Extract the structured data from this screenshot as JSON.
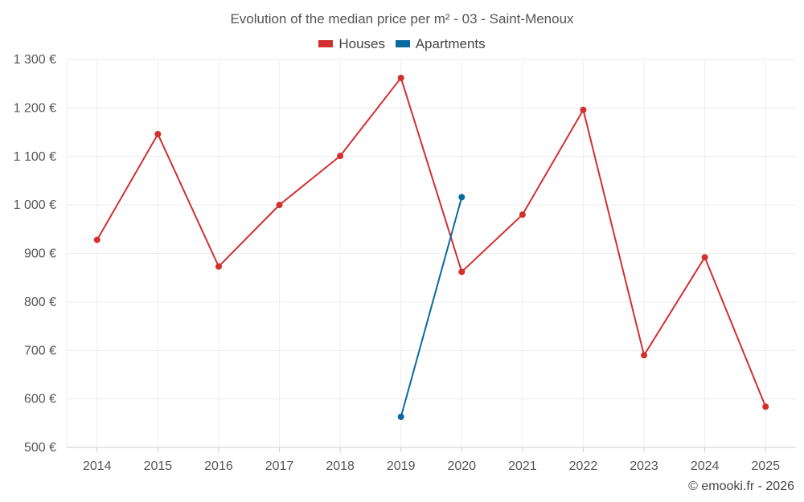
{
  "chart_data": {
    "type": "line",
    "title": "Evolution of the median price per m² - 03 - Saint-Menoux",
    "xlabel": "",
    "ylabel": "",
    "categories": [
      "2014",
      "2015",
      "2016",
      "2017",
      "2018",
      "2019",
      "2020",
      "2021",
      "2022",
      "2023",
      "2024",
      "2025"
    ],
    "y_tick_labels": [
      "500 €",
      "600 €",
      "700 €",
      "800 €",
      "900 €",
      "1 000 €",
      "1 100 €",
      "1 200 €",
      "1 300 €"
    ],
    "y_ticks": [
      500,
      600,
      700,
      800,
      900,
      1000,
      1100,
      1200,
      1300
    ],
    "ylim": [
      500,
      1300
    ],
    "grid": true,
    "legend_position": "top-center",
    "series": [
      {
        "name": "Houses",
        "color": "#d32f2f",
        "values": [
          928,
          1146,
          873,
          1000,
          1101,
          1262,
          862,
          980,
          1196,
          690,
          892,
          584
        ]
      },
      {
        "name": "Apartments",
        "color": "#0a6a9e",
        "values": [
          null,
          null,
          null,
          null,
          null,
          563,
          1016,
          null,
          null,
          null,
          null,
          null
        ]
      }
    ]
  },
  "legend": {
    "houses_label": "Houses",
    "apartments_label": "Apartments"
  },
  "credit": "© emooki.fr - 2026"
}
